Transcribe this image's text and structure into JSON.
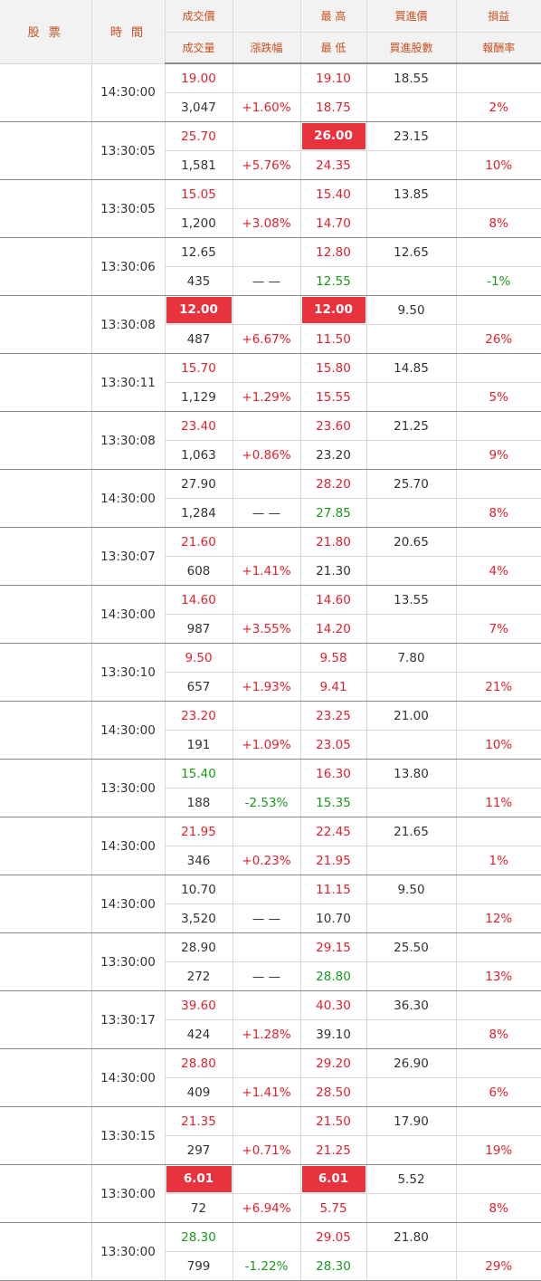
{
  "colors": {
    "up": "#e0222e",
    "down": "#1a9a1a",
    "flat": "#333333",
    "highlight": "#e8333e",
    "header_text": "#c8501e"
  },
  "header": {
    "stock": "股 票",
    "time": "時 間",
    "price": "成交價",
    "volume": "成交量",
    "change": "漲跌幅",
    "high": "最 高",
    "low": "最 低",
    "bid": "買進價",
    "bid_shares": "買進股數",
    "pnl": "損益",
    "return": "報酬率"
  },
  "rows": [
    {
      "time": "14:30:00",
      "price": "19.00",
      "price_dir": "up",
      "price_hl": false,
      "volume": "3,047",
      "change": "+1.60%",
      "change_dir": "up",
      "high": "19.10",
      "high_dir": "up",
      "high_hl": false,
      "low": "18.75",
      "low_dir": "up",
      "bid": "18.55",
      "ret": "2%",
      "ret_dir": "up"
    },
    {
      "time": "13:30:05",
      "price": "25.70",
      "price_dir": "up",
      "price_hl": false,
      "volume": "1,581",
      "change": "+5.76%",
      "change_dir": "up",
      "high": "26.00",
      "high_dir": "up",
      "high_hl": true,
      "low": "24.35",
      "low_dir": "up",
      "bid": "23.15",
      "ret": "10%",
      "ret_dir": "up"
    },
    {
      "time": "13:30:05",
      "price": "15.05",
      "price_dir": "up",
      "price_hl": false,
      "volume": "1,200",
      "change": "+3.08%",
      "change_dir": "up",
      "high": "15.40",
      "high_dir": "up",
      "high_hl": false,
      "low": "14.70",
      "low_dir": "up",
      "bid": "13.85",
      "ret": "8%",
      "ret_dir": "up"
    },
    {
      "time": "13:30:06",
      "price": "12.65",
      "price_dir": "flat",
      "price_hl": false,
      "volume": "435",
      "change": "— —",
      "change_dir": "flat",
      "high": "12.80",
      "high_dir": "up",
      "high_hl": false,
      "low": "12.55",
      "low_dir": "down",
      "bid": "12.65",
      "ret": "-1%",
      "ret_dir": "down"
    },
    {
      "time": "13:30:08",
      "price": "12.00",
      "price_dir": "up",
      "price_hl": true,
      "volume": "487",
      "change": "+6.67%",
      "change_dir": "up",
      "high": "12.00",
      "high_dir": "up",
      "high_hl": true,
      "low": "11.50",
      "low_dir": "up",
      "bid": "9.50",
      "ret": "26%",
      "ret_dir": "up"
    },
    {
      "time": "13:30:11",
      "price": "15.70",
      "price_dir": "up",
      "price_hl": false,
      "volume": "1,129",
      "change": "+1.29%",
      "change_dir": "up",
      "high": "15.80",
      "high_dir": "up",
      "high_hl": false,
      "low": "15.55",
      "low_dir": "up",
      "bid": "14.85",
      "ret": "5%",
      "ret_dir": "up"
    },
    {
      "time": "13:30:08",
      "price": "23.40",
      "price_dir": "up",
      "price_hl": false,
      "volume": "1,063",
      "change": "+0.86%",
      "change_dir": "up",
      "high": "23.60",
      "high_dir": "up",
      "high_hl": false,
      "low": "23.20",
      "low_dir": "flat",
      "bid": "21.25",
      "ret": "9%",
      "ret_dir": "up"
    },
    {
      "time": "14:30:00",
      "price": "27.90",
      "price_dir": "flat",
      "price_hl": false,
      "volume": "1,284",
      "change": "— —",
      "change_dir": "flat",
      "high": "28.20",
      "high_dir": "up",
      "high_hl": false,
      "low": "27.85",
      "low_dir": "down",
      "bid": "25.70",
      "ret": "8%",
      "ret_dir": "up"
    },
    {
      "time": "13:30:07",
      "price": "21.60",
      "price_dir": "up",
      "price_hl": false,
      "volume": "608",
      "change": "+1.41%",
      "change_dir": "up",
      "high": "21.80",
      "high_dir": "up",
      "high_hl": false,
      "low": "21.30",
      "low_dir": "flat",
      "bid": "20.65",
      "ret": "4%",
      "ret_dir": "up"
    },
    {
      "time": "14:30:00",
      "price": "14.60",
      "price_dir": "up",
      "price_hl": false,
      "volume": "987",
      "change": "+3.55%",
      "change_dir": "up",
      "high": "14.60",
      "high_dir": "up",
      "high_hl": false,
      "low": "14.20",
      "low_dir": "up",
      "bid": "13.55",
      "ret": "7%",
      "ret_dir": "up"
    },
    {
      "time": "13:30:10",
      "price": "9.50",
      "price_dir": "up",
      "price_hl": false,
      "volume": "657",
      "change": "+1.93%",
      "change_dir": "up",
      "high": "9.58",
      "high_dir": "up",
      "high_hl": false,
      "low": "9.41",
      "low_dir": "up",
      "bid": "7.80",
      "ret": "21%",
      "ret_dir": "up"
    },
    {
      "time": "14:30:00",
      "price": "23.20",
      "price_dir": "up",
      "price_hl": false,
      "volume": "191",
      "change": "+1.09%",
      "change_dir": "up",
      "high": "23.25",
      "high_dir": "up",
      "high_hl": false,
      "low": "23.05",
      "low_dir": "up",
      "bid": "21.00",
      "ret": "10%",
      "ret_dir": "up"
    },
    {
      "time": "13:30:00",
      "price": "15.40",
      "price_dir": "down",
      "price_hl": false,
      "volume": "188",
      "change": "-2.53%",
      "change_dir": "down",
      "high": "16.30",
      "high_dir": "up",
      "high_hl": false,
      "low": "15.35",
      "low_dir": "down",
      "bid": "13.80",
      "ret": "11%",
      "ret_dir": "up"
    },
    {
      "time": "14:30:00",
      "price": "21.95",
      "price_dir": "up",
      "price_hl": false,
      "volume": "346",
      "change": "+0.23%",
      "change_dir": "up",
      "high": "22.45",
      "high_dir": "up",
      "high_hl": false,
      "low": "21.95",
      "low_dir": "up",
      "bid": "21.65",
      "ret": "1%",
      "ret_dir": "up"
    },
    {
      "time": "14:30:00",
      "price": "10.70",
      "price_dir": "flat",
      "price_hl": false,
      "volume": "3,520",
      "change": "— —",
      "change_dir": "flat",
      "high": "11.15",
      "high_dir": "up",
      "high_hl": false,
      "low": "10.70",
      "low_dir": "flat",
      "bid": "9.50",
      "ret": "12%",
      "ret_dir": "up"
    },
    {
      "time": "13:30:00",
      "price": "28.90",
      "price_dir": "flat",
      "price_hl": false,
      "volume": "272",
      "change": "— —",
      "change_dir": "flat",
      "high": "29.15",
      "high_dir": "up",
      "high_hl": false,
      "low": "28.80",
      "low_dir": "down",
      "bid": "25.50",
      "ret": "13%",
      "ret_dir": "up"
    },
    {
      "time": "13:30:17",
      "price": "39.60",
      "price_dir": "up",
      "price_hl": false,
      "volume": "424",
      "change": "+1.28%",
      "change_dir": "up",
      "high": "40.30",
      "high_dir": "up",
      "high_hl": false,
      "low": "39.10",
      "low_dir": "flat",
      "bid": "36.30",
      "ret": "8%",
      "ret_dir": "up"
    },
    {
      "time": "14:30:00",
      "price": "28.80",
      "price_dir": "up",
      "price_hl": false,
      "volume": "409",
      "change": "+1.41%",
      "change_dir": "up",
      "high": "29.20",
      "high_dir": "up",
      "high_hl": false,
      "low": "28.50",
      "low_dir": "up",
      "bid": "26.90",
      "ret": "6%",
      "ret_dir": "up"
    },
    {
      "time": "13:30:15",
      "price": "21.35",
      "price_dir": "up",
      "price_hl": false,
      "volume": "297",
      "change": "+0.71%",
      "change_dir": "up",
      "high": "21.50",
      "high_dir": "up",
      "high_hl": false,
      "low": "21.25",
      "low_dir": "up",
      "bid": "17.90",
      "ret": "19%",
      "ret_dir": "up"
    },
    {
      "time": "13:30:00",
      "price": "6.01",
      "price_dir": "up",
      "price_hl": true,
      "volume": "72",
      "change": "+6.94%",
      "change_dir": "up",
      "high": "6.01",
      "high_dir": "up",
      "high_hl": true,
      "low": "5.75",
      "low_dir": "up",
      "bid": "5.52",
      "ret": "8%",
      "ret_dir": "up"
    },
    {
      "time": "13:30:00",
      "price": "28.30",
      "price_dir": "down",
      "price_hl": false,
      "volume": "799",
      "change": "-1.22%",
      "change_dir": "down",
      "high": "29.05",
      "high_dir": "up",
      "high_hl": false,
      "low": "28.30",
      "low_dir": "down",
      "bid": "21.80",
      "ret": "29%",
      "ret_dir": "up"
    }
  ]
}
